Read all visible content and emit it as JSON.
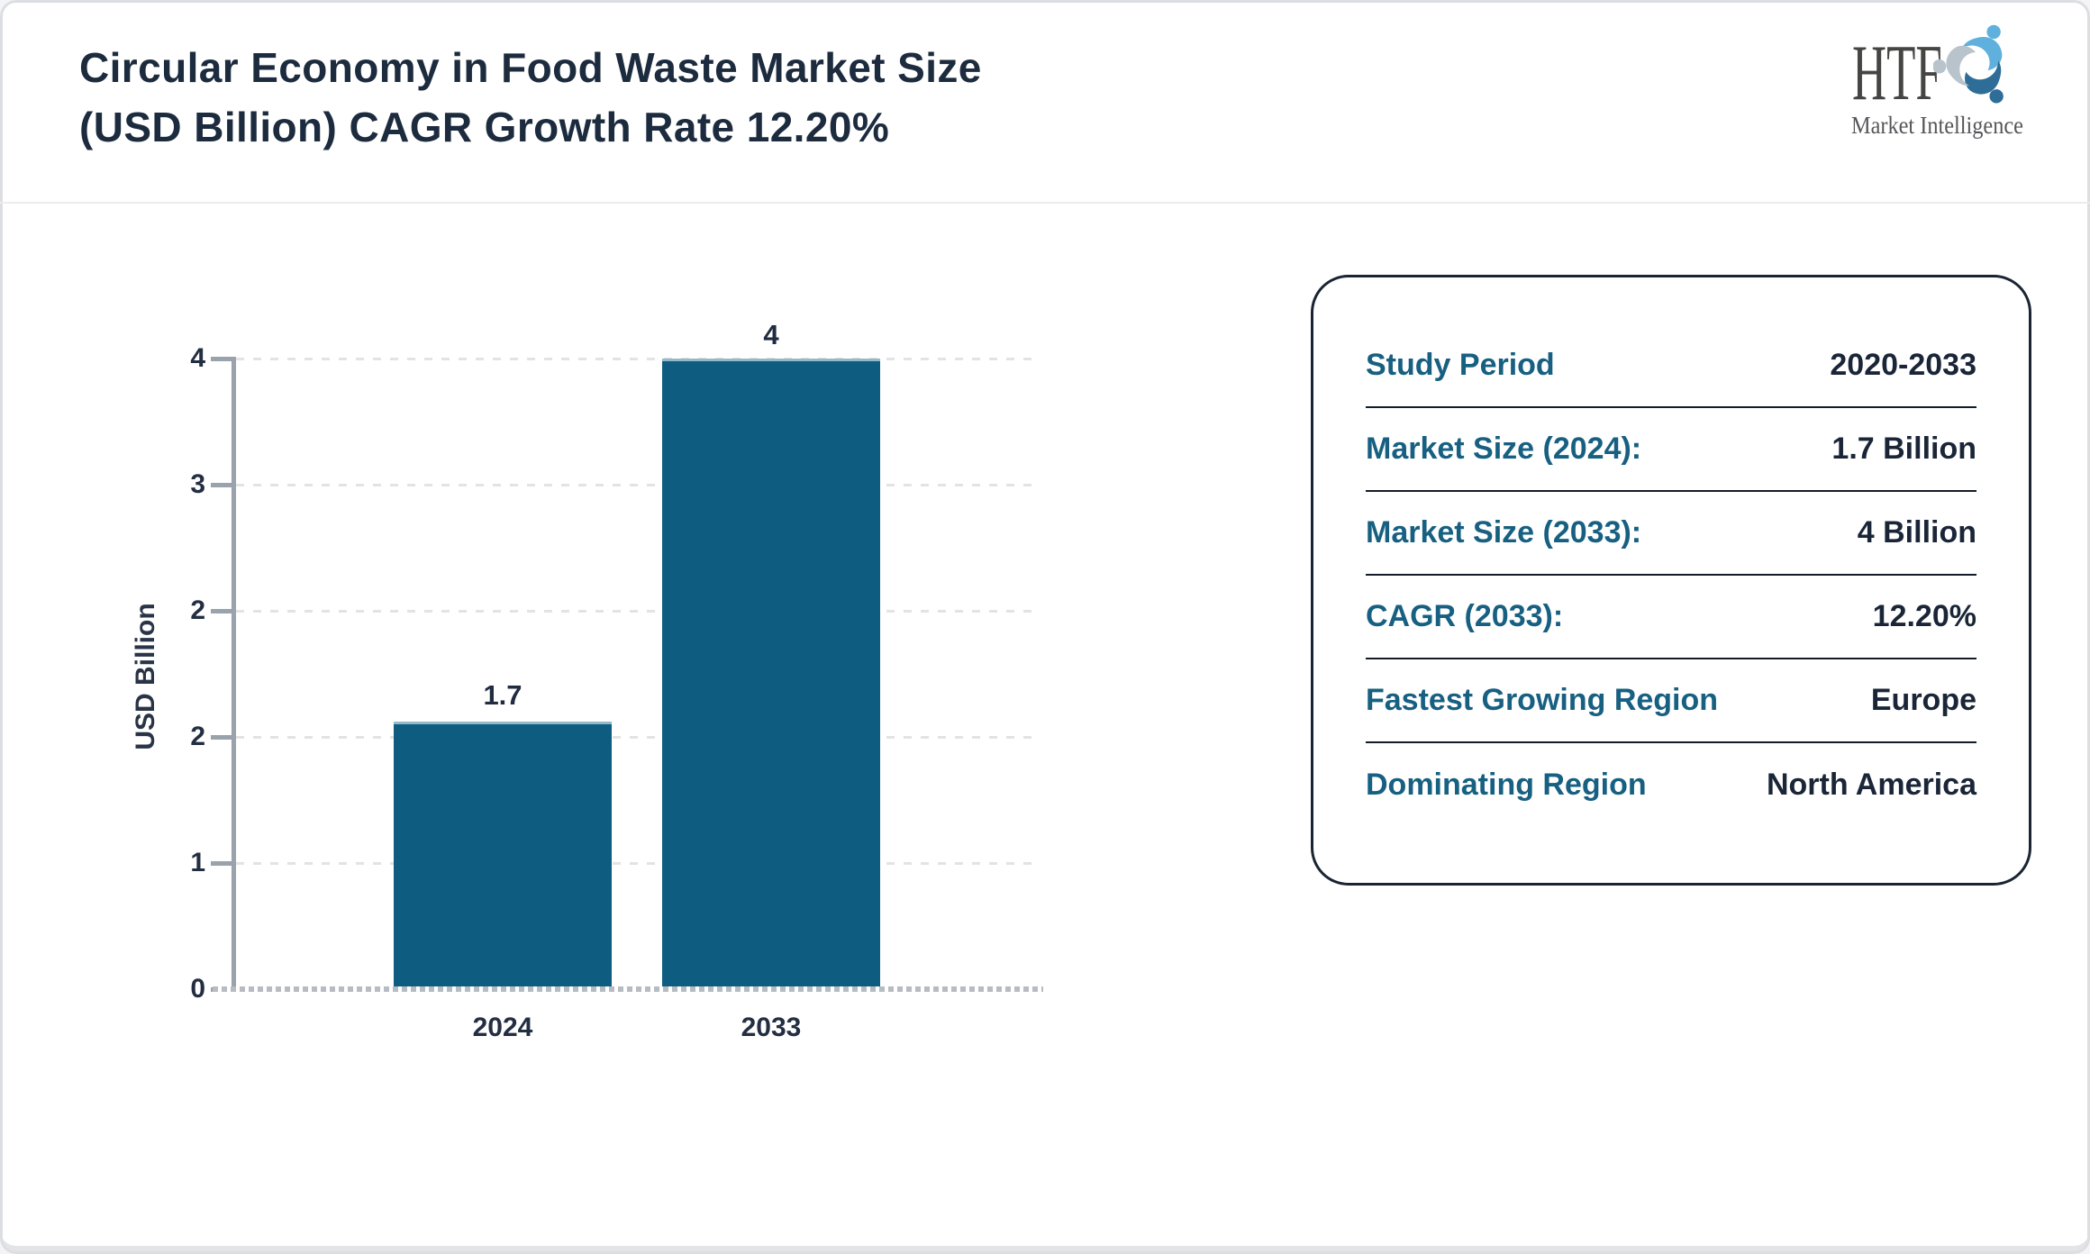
{
  "header": {
    "title_line1": "Circular Economy in Food Waste Market Size",
    "title_line2": "(USD Billion) CAGR Growth Rate 12.20%"
  },
  "logo": {
    "name": "HTF",
    "subtitle": "Market Intelligence",
    "swirl_colors": {
      "top": "#5fb0dc",
      "right": "#2d6d97",
      "left": "#b9c3cb"
    }
  },
  "chart_data": {
    "type": "bar",
    "title": "Circular Economy in Food Waste Market Size (USD Billion) CAGR Growth Rate 12.20%",
    "categories": [
      "2024",
      "2033"
    ],
    "values": [
      1.7,
      4
    ],
    "value_labels": [
      "1.7",
      "4"
    ],
    "xlabel": "",
    "ylabel": "USD Billion",
    "ylim": [
      0,
      4
    ],
    "ytick_labels": [
      "4",
      "3",
      "2",
      "2",
      "1",
      "0"
    ],
    "ytick_values": [
      4,
      3.2,
      2.4,
      1.6,
      0.8,
      0
    ],
    "grid": "horizontal dashed",
    "legend": null,
    "bar_color": "#0e5d80",
    "axis_color": "#9aa2ac",
    "text_color": "#232e42"
  },
  "info_card": {
    "rows": [
      {
        "label": "Study Period",
        "value": "2020-2033"
      },
      {
        "label": "Market Size (2024):",
        "value": "1.7 Billion"
      },
      {
        "label": "Market Size (2033):",
        "value": "4 Billion"
      },
      {
        "label": "CAGR (2033):",
        "value": "12.20%"
      },
      {
        "label": "Fastest Growing Region",
        "value": "Europe"
      },
      {
        "label": "Dominating Region",
        "value": "North America"
      }
    ],
    "label_color": "#176081",
    "value_color": "#1a2638"
  }
}
